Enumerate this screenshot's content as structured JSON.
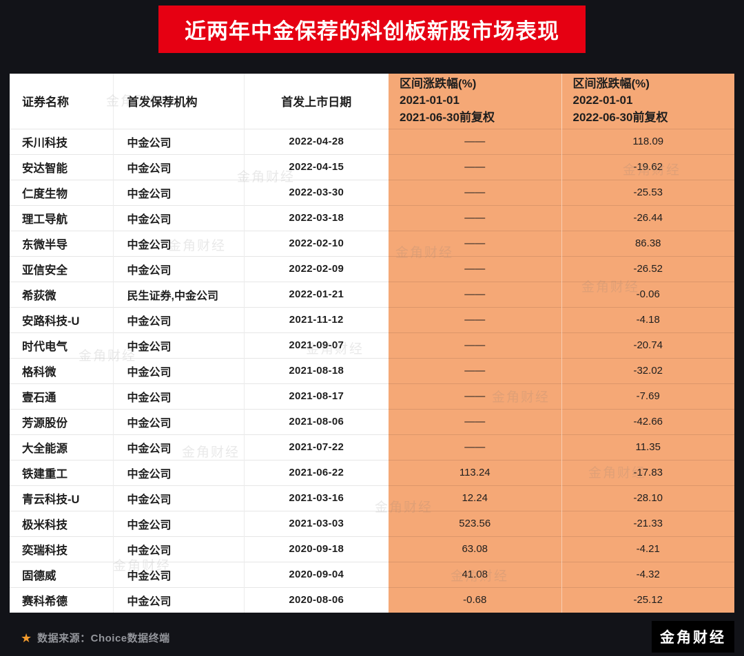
{
  "page": {
    "title": "近两年中金保荐的科创板新股市场表现",
    "watermark": "金角财经",
    "footer": {
      "source_label": "数据来源：Choice数据终端",
      "brand": "金角财经"
    }
  },
  "colors": {
    "background": "#121318",
    "banner_red": "#e60012",
    "highlight_orange": "#f5a876",
    "text_dark": "#1e1e1e",
    "source_gray": "#94969c",
    "star_orange": "#f39b2d"
  },
  "table": {
    "columns": [
      {
        "id": "security-name",
        "lines": [
          "证券名称"
        ],
        "highlight": false
      },
      {
        "id": "sponsor",
        "lines": [
          "首发保荐机构"
        ],
        "highlight": false
      },
      {
        "id": "listing-date",
        "lines": [
          "首发上市日期"
        ],
        "highlight": false
      },
      {
        "id": "change-2021",
        "lines": [
          "区间涨跌幅(%)",
          "2021-01-01",
          "2021-06-30前复权"
        ],
        "highlight": true
      },
      {
        "id": "change-2022",
        "lines": [
          "区间涨跌幅(%)",
          "2022-01-01",
          "2022-06-30前复权"
        ],
        "highlight": true
      }
    ]
  },
  "chart_data": {
    "type": "table",
    "title": "近两年中金保荐的科创板新股市场表现",
    "columns": [
      "证券名称",
      "首发保荐机构",
      "首发上市日期",
      "区间涨跌幅(%) 2021-01-01 2021-06-30前复权",
      "区间涨跌幅(%) 2022-01-01 2022-06-30前复权"
    ],
    "rows": [
      [
        "禾川科技",
        "中金公司",
        "2022-04-28",
        "——",
        "118.09"
      ],
      [
        "安达智能",
        "中金公司",
        "2022-04-15",
        "——",
        "-19.62"
      ],
      [
        "仁度生物",
        "中金公司",
        "2022-03-30",
        "——",
        "-25.53"
      ],
      [
        "理工导航",
        "中金公司",
        "2022-03-18",
        "——",
        "-26.44"
      ],
      [
        "东微半导",
        "中金公司",
        "2022-02-10",
        "——",
        "86.38"
      ],
      [
        "亚信安全",
        "中金公司",
        "2022-02-09",
        "——",
        "-26.52"
      ],
      [
        "希荻微",
        "民生证券,中金公司",
        "2022-01-21",
        "——",
        "-0.06"
      ],
      [
        "安路科技-U",
        "中金公司",
        "2021-11-12",
        "——",
        "-4.18"
      ],
      [
        "时代电气",
        "中金公司",
        "2021-09-07",
        "——",
        "-20.74"
      ],
      [
        "格科微",
        "中金公司",
        "2021-08-18",
        "——",
        "-32.02"
      ],
      [
        "壹石通",
        "中金公司",
        "2021-08-17",
        "——",
        "-7.69"
      ],
      [
        "芳源股份",
        "中金公司",
        "2021-08-06",
        "——",
        "-42.66"
      ],
      [
        "大全能源",
        "中金公司",
        "2021-07-22",
        "——",
        "11.35"
      ],
      [
        "铁建重工",
        "中金公司",
        "2021-06-22",
        "113.24",
        "-17.83"
      ],
      [
        "青云科技-U",
        "中金公司",
        "2021-03-16",
        "12.24",
        "-28.10"
      ],
      [
        "极米科技",
        "中金公司",
        "2021-03-03",
        "523.56",
        "-21.33"
      ],
      [
        "奕瑞科技",
        "中金公司",
        "2020-09-18",
        "63.08",
        "-4.21"
      ],
      [
        "固德威",
        "中金公司",
        "2020-09-04",
        "41.08",
        "-4.32"
      ],
      [
        "赛科希德",
        "中金公司",
        "2020-08-06",
        "-0.68",
        "-25.12"
      ]
    ],
    "source": "Choice数据终端"
  }
}
